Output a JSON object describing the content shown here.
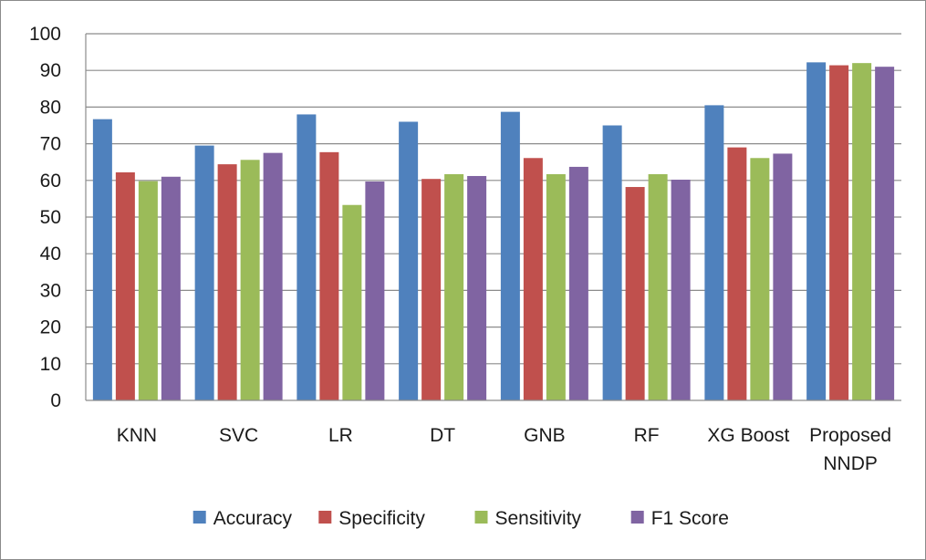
{
  "chart_data": {
    "type": "bar",
    "categories": [
      "KNN",
      "SVC",
      "LR",
      "DT",
      "GNB",
      "RF",
      "XG Boost",
      "Proposed NNDP"
    ],
    "series": [
      {
        "name": "Accuracy",
        "color": "#4f81bd",
        "values": [
          76.7,
          69.5,
          78.0,
          76.0,
          78.7,
          75.0,
          80.5,
          92.2
        ]
      },
      {
        "name": "Specificity",
        "color": "#c0504d",
        "values": [
          62.2,
          64.4,
          67.7,
          60.4,
          66.1,
          58.2,
          69.0,
          91.4
        ]
      },
      {
        "name": "Sensitivity",
        "color": "#9bbb59",
        "values": [
          59.8,
          65.6,
          53.3,
          61.7,
          61.7,
          61.7,
          66.1,
          92.0
        ]
      },
      {
        "name": "F1 Score",
        "color": "#8064a2",
        "values": [
          61.0,
          67.5,
          59.7,
          61.2,
          63.7,
          60.2,
          67.3,
          91.0
        ]
      }
    ],
    "ylim": [
      0,
      100
    ],
    "yticks": [
      0,
      10,
      20,
      30,
      40,
      50,
      60,
      70,
      80,
      90,
      100
    ],
    "grid": true,
    "legend_position": "bottom",
    "title": "",
    "xlabel": "",
    "ylabel": ""
  }
}
